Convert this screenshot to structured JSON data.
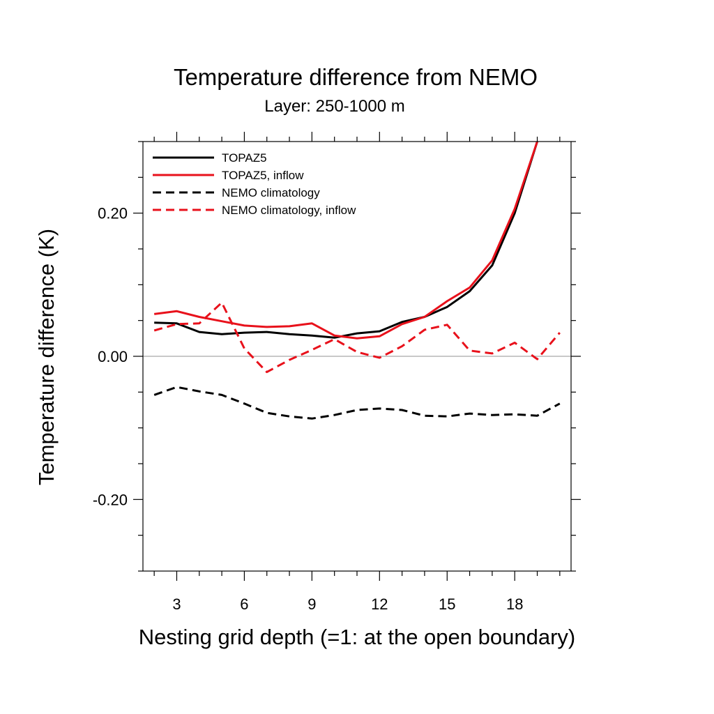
{
  "chart_data": {
    "type": "line",
    "title": "Temperature difference from NEMO",
    "subtitle": "Layer: 250-1000 m",
    "xlabel": "Nesting grid depth (=1: at the open boundary)",
    "ylabel": "Temperature difference (K)",
    "xlim": [
      1.5,
      20.5
    ],
    "ylim": [
      -0.3,
      0.3
    ],
    "x_ticks": [
      3,
      6,
      9,
      12,
      15,
      18
    ],
    "x_tick_labels": [
      "3",
      "6",
      "9",
      "12",
      "15",
      "18"
    ],
    "y_ticks": [
      -0.2,
      0.0,
      0.2
    ],
    "y_tick_labels": [
      "-0.20",
      "0.00",
      "0.20"
    ],
    "zero_line": true,
    "legend_position": "top-left",
    "x": [
      2,
      3,
      4,
      5,
      6,
      7,
      8,
      9,
      10,
      11,
      12,
      13,
      14,
      15,
      16,
      17,
      18,
      19,
      20
    ],
    "series": [
      {
        "name": "TOPAZ5",
        "color": "#000000",
        "dash": "solid",
        "values": [
          0.047,
          0.046,
          0.034,
          0.031,
          0.033,
          0.034,
          0.031,
          0.029,
          0.026,
          0.032,
          0.035,
          0.048,
          0.055,
          0.069,
          0.091,
          0.127,
          0.2,
          0.3,
          null
        ]
      },
      {
        "name": "TOPAZ5, inflow",
        "color": "#e8111b",
        "dash": "solid",
        "values": [
          0.059,
          0.063,
          0.055,
          0.049,
          0.043,
          0.041,
          0.042,
          0.046,
          0.029,
          0.025,
          0.028,
          0.045,
          0.055,
          0.077,
          0.096,
          0.134,
          0.206,
          0.3,
          null
        ]
      },
      {
        "name": "NEMO climatology",
        "color": "#000000",
        "dash": "dashed",
        "values": [
          -0.054,
          -0.043,
          -0.049,
          -0.054,
          -0.066,
          -0.079,
          -0.084,
          -0.087,
          -0.082,
          -0.075,
          -0.073,
          -0.075,
          -0.083,
          -0.084,
          -0.08,
          -0.082,
          -0.081,
          -0.083,
          -0.066
        ]
      },
      {
        "name": "NEMO climatology, inflow",
        "color": "#e8111b",
        "dash": "dashed",
        "values": [
          0.036,
          0.045,
          0.046,
          0.075,
          0.011,
          -0.022,
          -0.005,
          0.009,
          0.024,
          0.006,
          -0.002,
          0.014,
          0.037,
          0.044,
          0.008,
          0.004,
          0.019,
          -0.004,
          0.033
        ]
      }
    ]
  }
}
